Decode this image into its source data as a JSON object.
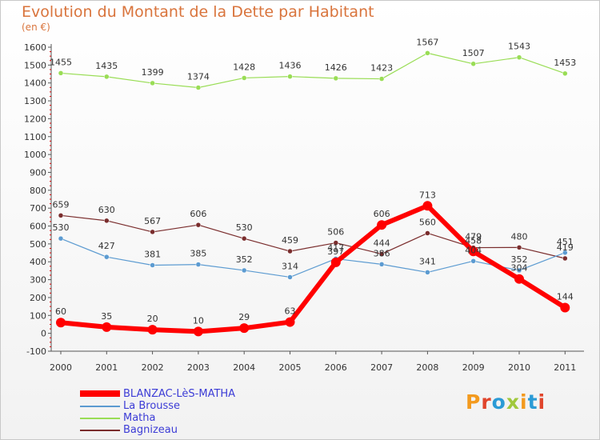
{
  "title": "Evolution du Montant de la Dette par Habitant",
  "subtitle": "(en €)",
  "logo_text": "Proxiti",
  "chart_data": {
    "type": "line",
    "x": [
      "2000",
      "2001",
      "2002",
      "2003",
      "2004",
      "2005",
      "2006",
      "2007",
      "2008",
      "2009",
      "2010",
      "2011"
    ],
    "ylim": [
      -100,
      1600
    ],
    "yticks": [
      -100,
      0,
      100,
      200,
      300,
      400,
      500,
      600,
      700,
      800,
      900,
      1000,
      1100,
      1200,
      1300,
      1400,
      1500,
      1600
    ],
    "grid": false,
    "legend": "bottom-left",
    "series": [
      {
        "name": "BLANZAC-LèS-MATHA",
        "color": "#ff0000",
        "width": 6,
        "marker": 6,
        "values": [
          60,
          35,
          20,
          10,
          29,
          63,
          397,
          606,
          713,
          458,
          304,
          144
        ],
        "labels": [
          "60",
          "35",
          "20",
          "10",
          "29",
          "63",
          "397",
          "606",
          "713",
          "458",
          "304",
          "144"
        ]
      },
      {
        "name": "La Brousse",
        "color": "#5c9bd1",
        "width": 1.2,
        "marker": 3,
        "values": [
          530,
          427,
          381,
          385,
          352,
          314,
          417,
          386,
          341,
          404,
          352,
          451
        ],
        "labels": [
          "530",
          "427",
          "381",
          "385",
          "352",
          "314",
          "417",
          "386",
          "341",
          "404",
          "352",
          "451"
        ]
      },
      {
        "name": "Matha",
        "color": "#99dd55",
        "width": 1.2,
        "marker": 3,
        "values": [
          1455,
          1435,
          1399,
          1374,
          1428,
          1436,
          1426,
          1423,
          1567,
          1507,
          1543,
          1453
        ],
        "labels": [
          "1455",
          "1435",
          "1399",
          "1374",
          "1428",
          "1436",
          "1426",
          "1423",
          "1567",
          "1507",
          "1543",
          "1453"
        ]
      },
      {
        "name": "Bagnizeau",
        "color": "#7a2d2d",
        "width": 1.2,
        "marker": 3,
        "values": [
          659,
          630,
          567,
          606,
          530,
          459,
          506,
          444,
          560,
          479,
          480,
          419
        ],
        "labels": [
          "659",
          "630",
          "567",
          "606",
          "530",
          "459",
          "506",
          "444",
          "560",
          "479",
          "480",
          "419"
        ]
      }
    ]
  }
}
